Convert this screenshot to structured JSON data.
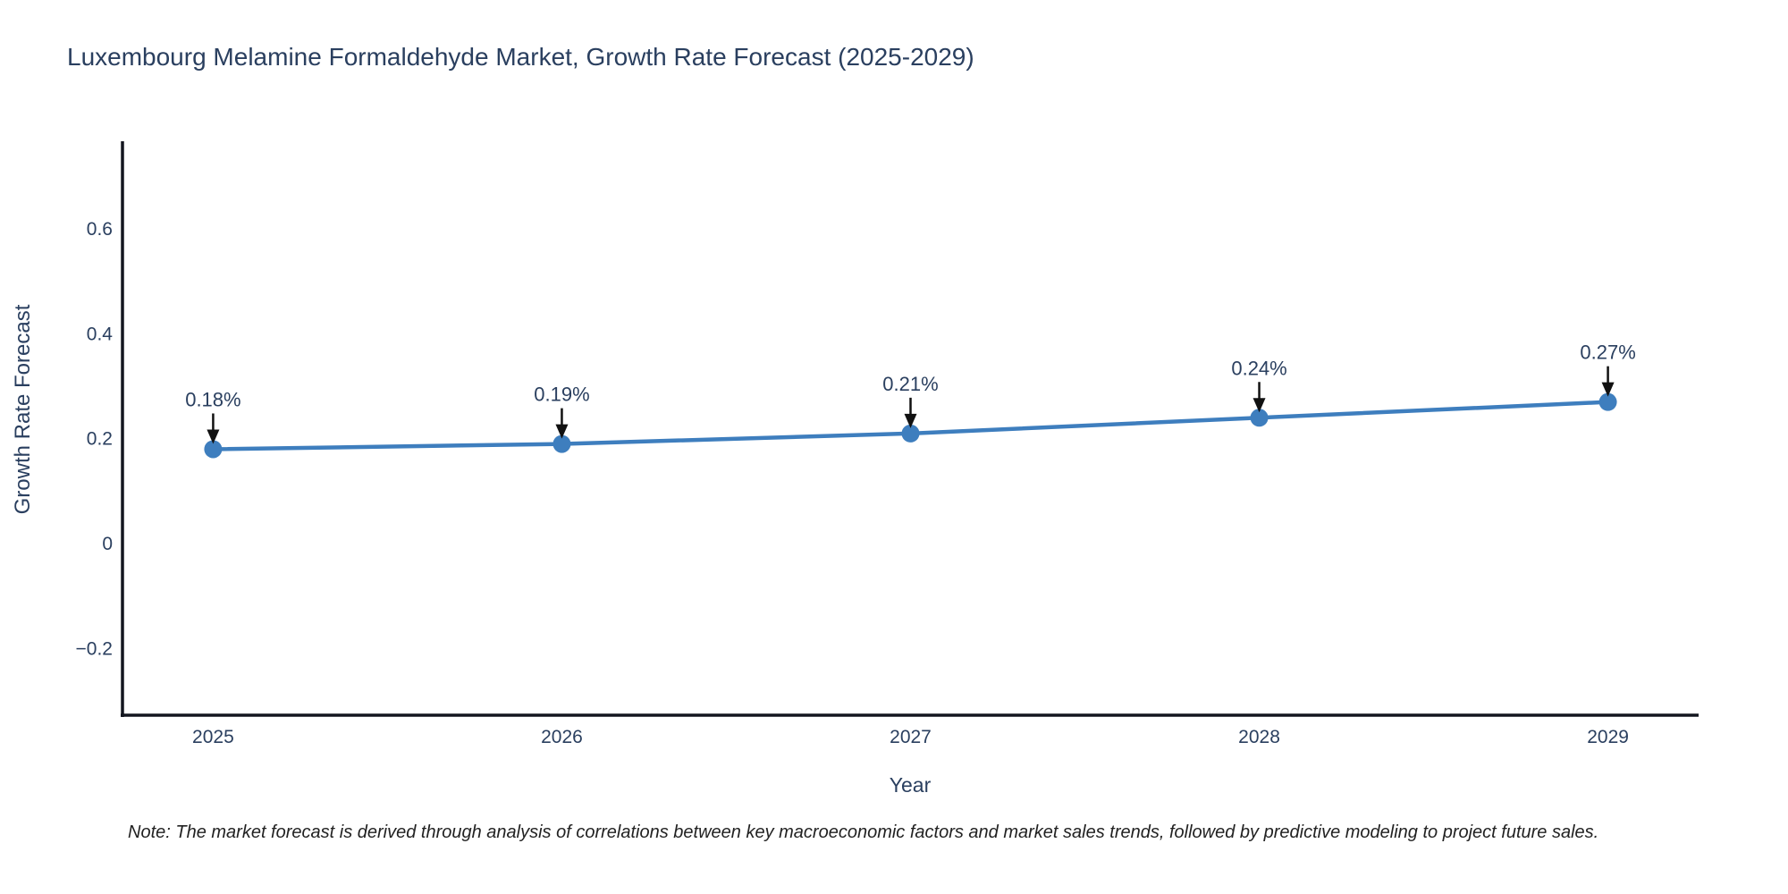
{
  "header": {
    "title": "Luxembourg Melamine Formaldehyde Market, Growth Rate Forecast (2025-2029)"
  },
  "footer": {
    "note": "Note: The market forecast is derived through analysis of correlations between key macroeconomic factors and market sales trends, followed by predictive modeling to project future sales."
  },
  "colors": {
    "accent": "#3e7ebe",
    "text": "#2a3f5f",
    "axis": "#13161f",
    "arrow": "#111111",
    "note": "#222222",
    "background": "#ffffff"
  },
  "chart_data": {
    "type": "line",
    "title": "Luxembourg Melamine Formaldehyde Market, Growth Rate Forecast (2025-2029)",
    "xlabel": "Year",
    "ylabel": "Growth Rate Forecast",
    "x": [
      2025,
      2026,
      2027,
      2028,
      2029
    ],
    "y": [
      0.18,
      0.19,
      0.21,
      0.24,
      0.27
    ],
    "point_labels": [
      "0.18%",
      "0.19%",
      "0.21%",
      "0.24%",
      "0.27%"
    ],
    "xtick_labels": [
      "2025",
      "2026",
      "2027",
      "2028",
      "2029"
    ],
    "yticks": [
      -0.2,
      0,
      0.2,
      0.4,
      0.6
    ],
    "ytick_labels": [
      "−0.2",
      "0",
      "0.2",
      "0.4",
      "0.6"
    ],
    "xlim": [
      2024.74,
      2029.26
    ],
    "ylim": [
      -0.327,
      0.767
    ],
    "grid": false,
    "legend": "none",
    "line_color": "#3e7ebe",
    "marker_color": "#3e7ebe",
    "annotation_arrow_color": "#111111"
  }
}
